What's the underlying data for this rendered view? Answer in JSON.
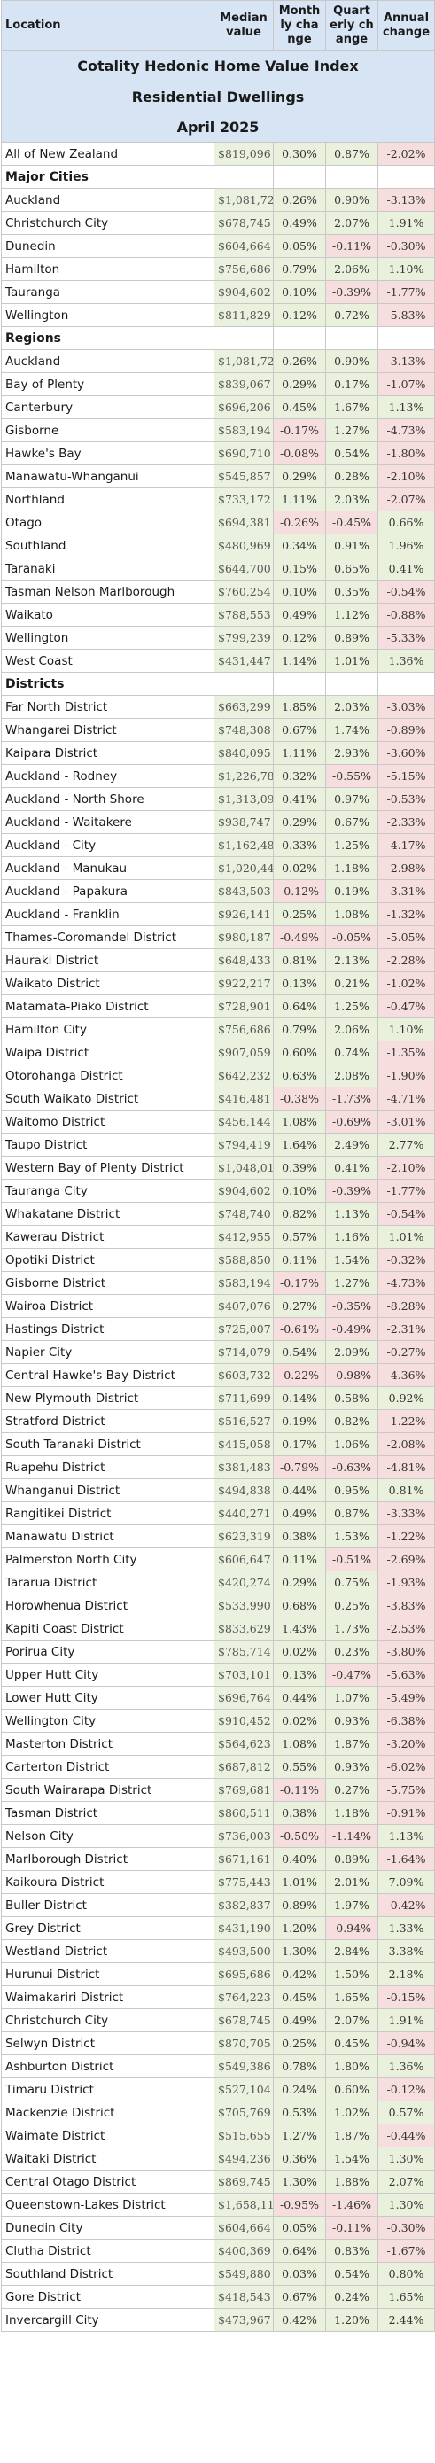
{
  "header": {
    "title1": "Cotality Hedonic Home Value Index",
    "title2": "Residential Dwellings",
    "title3": "April 2025"
  },
  "columns": {
    "location": "Location",
    "median": "Median value",
    "monthly": "Monthly change",
    "quarterly": "Quarterly change",
    "annual": "Annual change"
  },
  "top": [
    {
      "name": "All of New Zealand",
      "value": "$819,096",
      "m": "0.30%",
      "q": "0.87%",
      "a": "-2.02%"
    }
  ],
  "sections": [
    {
      "title": "Major Cities",
      "rows": [
        {
          "name": "Auckland",
          "value": "$1,081,729",
          "m": "0.26%",
          "q": "0.90%",
          "a": "-3.13%"
        },
        {
          "name": "Christchurch City",
          "value": "$678,745",
          "m": "0.49%",
          "q": "2.07%",
          "a": "1.91%"
        },
        {
          "name": "Dunedin",
          "value": "$604,664",
          "m": "0.05%",
          "q": "-0.11%",
          "a": "-0.30%"
        },
        {
          "name": "Hamilton",
          "value": "$756,686",
          "m": "0.79%",
          "q": "2.06%",
          "a": "1.10%"
        },
        {
          "name": "Tauranga",
          "value": "$904,602",
          "m": "0.10%",
          "q": "-0.39%",
          "a": "-1.77%"
        },
        {
          "name": "Wellington",
          "value": "$811,829",
          "m": "0.12%",
          "q": "0.72%",
          "a": "-5.83%"
        }
      ]
    },
    {
      "title": "Regions",
      "rows": [
        {
          "name": "Auckland",
          "value": "$1,081,729",
          "m": "0.26%",
          "q": "0.90%",
          "a": "-3.13%"
        },
        {
          "name": "Bay of Plenty",
          "value": "$839,067",
          "m": "0.29%",
          "q": "0.17%",
          "a": "-1.07%"
        },
        {
          "name": "Canterbury",
          "value": "$696,206",
          "m": "0.45%",
          "q": "1.67%",
          "a": "1.13%"
        },
        {
          "name": "Gisborne",
          "value": "$583,194",
          "m": "-0.17%",
          "q": "1.27%",
          "a": "-4.73%"
        },
        {
          "name": "Hawke's Bay",
          "value": "$690,710",
          "m": "-0.08%",
          "q": "0.54%",
          "a": "-1.80%"
        },
        {
          "name": "Manawatu-Whanganui",
          "value": "$545,857",
          "m": "0.29%",
          "q": "0.28%",
          "a": "-2.10%"
        },
        {
          "name": "Northland",
          "value": "$733,172",
          "m": "1.11%",
          "q": "2.03%",
          "a": "-2.07%"
        },
        {
          "name": "Otago",
          "value": "$694,381",
          "m": "-0.26%",
          "q": "-0.45%",
          "a": "0.66%"
        },
        {
          "name": "Southland",
          "value": "$480,969",
          "m": "0.34%",
          "q": "0.91%",
          "a": "1.96%"
        },
        {
          "name": "Taranaki",
          "value": "$644,700",
          "m": "0.15%",
          "q": "0.65%",
          "a": "0.41%"
        },
        {
          "name": "Tasman Nelson Marlborough",
          "value": "$760,254",
          "m": "0.10%",
          "q": "0.35%",
          "a": "-0.54%"
        },
        {
          "name": "Waikato",
          "value": "$788,553",
          "m": "0.49%",
          "q": "1.12%",
          "a": "-0.88%"
        },
        {
          "name": "Wellington",
          "value": "$799,239",
          "m": "0.12%",
          "q": "0.89%",
          "a": "-5.33%"
        },
        {
          "name": "West Coast",
          "value": "$431,447",
          "m": "1.14%",
          "q": "1.01%",
          "a": "1.36%"
        }
      ]
    },
    {
      "title": "Districts",
      "rows": [
        {
          "name": "Far North District",
          "value": "$663,299",
          "m": "1.85%",
          "q": "2.03%",
          "a": "-3.03%"
        },
        {
          "name": "Whangarei District",
          "value": "$748,308",
          "m": "0.67%",
          "q": "1.74%",
          "a": "-0.89%"
        },
        {
          "name": "Kaipara District",
          "value": "$840,095",
          "m": "1.11%",
          "q": "2.93%",
          "a": "-3.60%"
        },
        {
          "name": "Auckland - Rodney",
          "value": "$1,226,785",
          "m": "0.32%",
          "q": "-0.55%",
          "a": "-5.15%"
        },
        {
          "name": "Auckland - North Shore",
          "value": "$1,313,091",
          "m": "0.41%",
          "q": "0.97%",
          "a": "-0.53%"
        },
        {
          "name": "Auckland - Waitakere",
          "value": "$938,747",
          "m": "0.29%",
          "q": "0.67%",
          "a": "-2.33%"
        },
        {
          "name": "Auckland - City",
          "value": "$1,162,488",
          "m": "0.33%",
          "q": "1.25%",
          "a": "-4.17%"
        },
        {
          "name": "Auckland - Manukau",
          "value": "$1,020,445",
          "m": "0.02%",
          "q": "1.18%",
          "a": "-2.98%"
        },
        {
          "name": "Auckland - Papakura",
          "value": "$843,503",
          "m": "-0.12%",
          "q": "0.19%",
          "a": "-3.31%"
        },
        {
          "name": "Auckland - Franklin",
          "value": "$926,141",
          "m": "0.25%",
          "q": "1.08%",
          "a": "-1.32%"
        },
        {
          "name": "Thames-Coromandel District",
          "value": "$980,187",
          "m": "-0.49%",
          "q": "-0.05%",
          "a": "-5.05%"
        },
        {
          "name": "Hauraki District",
          "value": "$648,433",
          "m": "0.81%",
          "q": "2.13%",
          "a": "-2.28%"
        },
        {
          "name": "Waikato District",
          "value": "$922,217",
          "m": "0.13%",
          "q": "0.21%",
          "a": "-1.02%"
        },
        {
          "name": "Matamata-Piako District",
          "value": "$728,901",
          "m": "0.64%",
          "q": "1.25%",
          "a": "-0.47%"
        },
        {
          "name": "Hamilton City",
          "value": "$756,686",
          "m": "0.79%",
          "q": "2.06%",
          "a": "1.10%"
        },
        {
          "name": "Waipa District",
          "value": "$907,059",
          "m": "0.60%",
          "q": "0.74%",
          "a": "-1.35%"
        },
        {
          "name": "Otorohanga District",
          "value": "$642,232",
          "m": "0.63%",
          "q": "2.08%",
          "a": "-1.90%"
        },
        {
          "name": "South Waikato District",
          "value": "$416,481",
          "m": "-0.38%",
          "q": "-1.73%",
          "a": "-4.71%"
        },
        {
          "name": "Waitomo District",
          "value": "$456,144",
          "m": "1.08%",
          "q": "-0.69%",
          "a": "-3.01%"
        },
        {
          "name": "Taupo District",
          "value": "$794,419",
          "m": "1.64%",
          "q": "2.49%",
          "a": "2.77%"
        },
        {
          "name": "Western Bay of Plenty District",
          "value": "$1,048,017",
          "m": "0.39%",
          "q": "0.41%",
          "a": "-2.10%"
        },
        {
          "name": "Tauranga City",
          "value": "$904,602",
          "m": "0.10%",
          "q": "-0.39%",
          "a": "-1.77%"
        },
        {
          "name": "Whakatane District",
          "value": "$748,740",
          "m": "0.82%",
          "q": "1.13%",
          "a": "-0.54%"
        },
        {
          "name": "Kawerau District",
          "value": "$412,955",
          "m": "0.57%",
          "q": "1.16%",
          "a": "1.01%"
        },
        {
          "name": "Opotiki District",
          "value": "$588,850",
          "m": "0.11%",
          "q": "1.54%",
          "a": "-0.32%"
        },
        {
          "name": "Gisborne District",
          "value": "$583,194",
          "m": "-0.17%",
          "q": "1.27%",
          "a": "-4.73%"
        },
        {
          "name": "Wairoa District",
          "value": "$407,076",
          "m": "0.27%",
          "q": "-0.35%",
          "a": "-8.28%"
        },
        {
          "name": "Hastings District",
          "value": "$725,007",
          "m": "-0.61%",
          "q": "-0.49%",
          "a": "-2.31%"
        },
        {
          "name": "Napier City",
          "value": "$714,079",
          "m": "0.54%",
          "q": "2.09%",
          "a": "-0.27%"
        },
        {
          "name": "Central Hawke's Bay District",
          "value": "$603,732",
          "m": "-0.22%",
          "q": "-0.98%",
          "a": "-4.36%"
        },
        {
          "name": "New Plymouth District",
          "value": "$711,699",
          "m": "0.14%",
          "q": "0.58%",
          "a": "0.92%"
        },
        {
          "name": "Stratford District",
          "value": "$516,527",
          "m": "0.19%",
          "q": "0.82%",
          "a": "-1.22%"
        },
        {
          "name": "South Taranaki District",
          "value": "$415,058",
          "m": "0.17%",
          "q": "1.06%",
          "a": "-2.08%"
        },
        {
          "name": "Ruapehu District",
          "value": "$381,483",
          "m": "-0.79%",
          "q": "-0.63%",
          "a": "-4.81%"
        },
        {
          "name": "Whanganui District",
          "value": "$494,838",
          "m": "0.44%",
          "q": "0.95%",
          "a": "0.81%"
        },
        {
          "name": "Rangitikei District",
          "value": "$440,271",
          "m": "0.49%",
          "q": "0.87%",
          "a": "-3.33%"
        },
        {
          "name": "Manawatu District",
          "value": "$623,319",
          "m": "0.38%",
          "q": "1.53%",
          "a": "-1.22%"
        },
        {
          "name": "Palmerston North City",
          "value": "$606,647",
          "m": "0.11%",
          "q": "-0.51%",
          "a": "-2.69%"
        },
        {
          "name": "Tararua District",
          "value": "$420,274",
          "m": "0.29%",
          "q": "0.75%",
          "a": "-1.93%"
        },
        {
          "name": "Horowhenua District",
          "value": "$533,990",
          "m": "0.68%",
          "q": "0.25%",
          "a": "-3.83%"
        },
        {
          "name": "Kapiti Coast District",
          "value": "$833,629",
          "m": "1.43%",
          "q": "1.73%",
          "a": "-2.53%"
        },
        {
          "name": "Porirua City",
          "value": "$785,714",
          "m": "0.02%",
          "q": "0.23%",
          "a": "-3.80%"
        },
        {
          "name": "Upper Hutt City",
          "value": "$703,101",
          "m": "0.13%",
          "q": "-0.47%",
          "a": "-5.63%"
        },
        {
          "name": "Lower Hutt City",
          "value": "$696,764",
          "m": "0.44%",
          "q": "1.07%",
          "a": "-5.49%"
        },
        {
          "name": "Wellington City",
          "value": "$910,452",
          "m": "0.02%",
          "q": "0.93%",
          "a": "-6.38%"
        },
        {
          "name": "Masterton District",
          "value": "$564,623",
          "m": "1.08%",
          "q": "1.87%",
          "a": "-3.20%"
        },
        {
          "name": "Carterton District",
          "value": "$687,812",
          "m": "0.55%",
          "q": "0.93%",
          "a": "-6.02%"
        },
        {
          "name": "South Wairarapa District",
          "value": "$769,681",
          "m": "-0.11%",
          "q": "0.27%",
          "a": "-5.75%"
        },
        {
          "name": "Tasman District",
          "value": "$860,511",
          "m": "0.38%",
          "q": "1.18%",
          "a": "-0.91%"
        },
        {
          "name": "Nelson City",
          "value": "$736,003",
          "m": "-0.50%",
          "q": "-1.14%",
          "a": "1.13%"
        },
        {
          "name": "Marlborough District",
          "value": "$671,161",
          "m": "0.40%",
          "q": "0.89%",
          "a": "-1.64%"
        },
        {
          "name": "Kaikoura District",
          "value": "$775,443",
          "m": "1.01%",
          "q": "2.01%",
          "a": "7.09%"
        },
        {
          "name": "Buller District",
          "value": "$382,837",
          "m": "0.89%",
          "q": "1.97%",
          "a": "-0.42%"
        },
        {
          "name": "Grey District",
          "value": "$431,190",
          "m": "1.20%",
          "q": "-0.94%",
          "a": "1.33%"
        },
        {
          "name": "Westland District",
          "value": "$493,500",
          "m": "1.30%",
          "q": "2.84%",
          "a": "3.38%"
        },
        {
          "name": "Hurunui District",
          "value": "$695,686",
          "m": "0.42%",
          "q": "1.50%",
          "a": "2.18%"
        },
        {
          "name": "Waimakariri District",
          "value": "$764,223",
          "m": "0.45%",
          "q": "1.65%",
          "a": "-0.15%"
        },
        {
          "name": "Christchurch City",
          "value": "$678,745",
          "m": "0.49%",
          "q": "2.07%",
          "a": "1.91%"
        },
        {
          "name": "Selwyn District",
          "value": "$870,705",
          "m": "0.25%",
          "q": "0.45%",
          "a": "-0.94%"
        },
        {
          "name": "Ashburton District",
          "value": "$549,386",
          "m": "0.78%",
          "q": "1.80%",
          "a": "1.36%"
        },
        {
          "name": "Timaru District",
          "value": "$527,104",
          "m": "0.24%",
          "q": "0.60%",
          "a": "-0.12%"
        },
        {
          "name": "Mackenzie District",
          "value": "$705,769",
          "m": "0.53%",
          "q": "1.02%",
          "a": "0.57%"
        },
        {
          "name": "Waimate District",
          "value": "$515,655",
          "m": "1.27%",
          "q": "1.87%",
          "a": "-0.44%"
        },
        {
          "name": "Waitaki District",
          "value": "$494,236",
          "m": "0.36%",
          "q": "1.54%",
          "a": "1.30%"
        },
        {
          "name": "Central Otago District",
          "value": "$869,745",
          "m": "1.30%",
          "q": "1.88%",
          "a": "2.07%"
        },
        {
          "name": "Queenstown-Lakes District",
          "value": "$1,658,111",
          "m": "-0.95%",
          "q": "-1.46%",
          "a": "1.30%"
        },
        {
          "name": "Dunedin City",
          "value": "$604,664",
          "m": "0.05%",
          "q": "-0.11%",
          "a": "-0.30%"
        },
        {
          "name": "Clutha District",
          "value": "$400,369",
          "m": "0.64%",
          "q": "0.83%",
          "a": "-1.67%"
        },
        {
          "name": "Southland District",
          "value": "$549,880",
          "m": "0.03%",
          "q": "0.54%",
          "a": "0.80%"
        },
        {
          "name": "Gore District",
          "value": "$418,543",
          "m": "0.67%",
          "q": "0.24%",
          "a": "1.65%"
        },
        {
          "name": "Invercargill City",
          "value": "$473,967",
          "m": "0.42%",
          "q": "1.20%",
          "a": "2.44%"
        }
      ]
    }
  ]
}
